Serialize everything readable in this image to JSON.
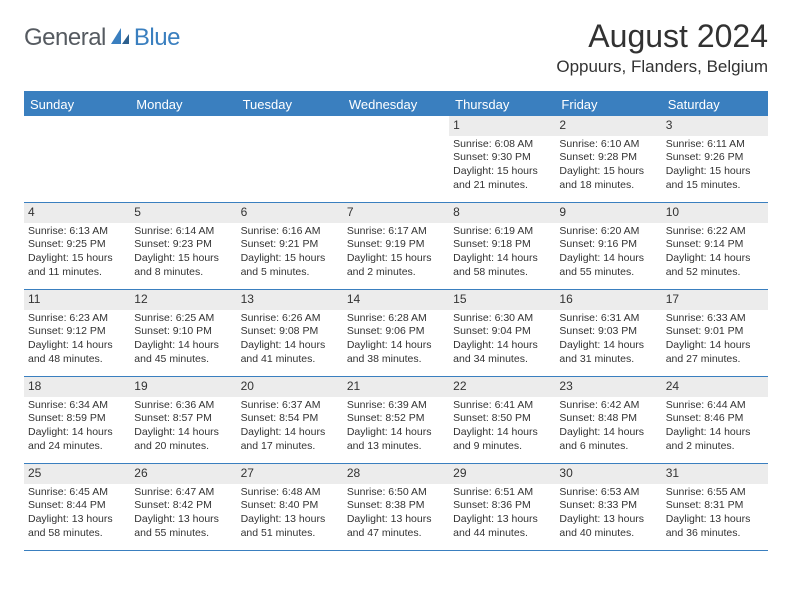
{
  "brand": {
    "general": "General",
    "blue": "Blue"
  },
  "title": "August 2024",
  "location": "Oppuurs, Flanders, Belgium",
  "colors": {
    "accent": "#3a7fbf",
    "dayHeaderBg": "#ececec",
    "text": "#333333",
    "bg": "#ffffff"
  },
  "daysOfWeek": [
    "Sunday",
    "Monday",
    "Tuesday",
    "Wednesday",
    "Thursday",
    "Friday",
    "Saturday"
  ],
  "weeks": [
    [
      null,
      null,
      null,
      null,
      {
        "n": "1",
        "sr": "Sunrise: 6:08 AM",
        "ss": "Sunset: 9:30 PM",
        "dl": "Daylight: 15 hours and 21 minutes."
      },
      {
        "n": "2",
        "sr": "Sunrise: 6:10 AM",
        "ss": "Sunset: 9:28 PM",
        "dl": "Daylight: 15 hours and 18 minutes."
      },
      {
        "n": "3",
        "sr": "Sunrise: 6:11 AM",
        "ss": "Sunset: 9:26 PM",
        "dl": "Daylight: 15 hours and 15 minutes."
      }
    ],
    [
      {
        "n": "4",
        "sr": "Sunrise: 6:13 AM",
        "ss": "Sunset: 9:25 PM",
        "dl": "Daylight: 15 hours and 11 minutes."
      },
      {
        "n": "5",
        "sr": "Sunrise: 6:14 AM",
        "ss": "Sunset: 9:23 PM",
        "dl": "Daylight: 15 hours and 8 minutes."
      },
      {
        "n": "6",
        "sr": "Sunrise: 6:16 AM",
        "ss": "Sunset: 9:21 PM",
        "dl": "Daylight: 15 hours and 5 minutes."
      },
      {
        "n": "7",
        "sr": "Sunrise: 6:17 AM",
        "ss": "Sunset: 9:19 PM",
        "dl": "Daylight: 15 hours and 2 minutes."
      },
      {
        "n": "8",
        "sr": "Sunrise: 6:19 AM",
        "ss": "Sunset: 9:18 PM",
        "dl": "Daylight: 14 hours and 58 minutes."
      },
      {
        "n": "9",
        "sr": "Sunrise: 6:20 AM",
        "ss": "Sunset: 9:16 PM",
        "dl": "Daylight: 14 hours and 55 minutes."
      },
      {
        "n": "10",
        "sr": "Sunrise: 6:22 AM",
        "ss": "Sunset: 9:14 PM",
        "dl": "Daylight: 14 hours and 52 minutes."
      }
    ],
    [
      {
        "n": "11",
        "sr": "Sunrise: 6:23 AM",
        "ss": "Sunset: 9:12 PM",
        "dl": "Daylight: 14 hours and 48 minutes."
      },
      {
        "n": "12",
        "sr": "Sunrise: 6:25 AM",
        "ss": "Sunset: 9:10 PM",
        "dl": "Daylight: 14 hours and 45 minutes."
      },
      {
        "n": "13",
        "sr": "Sunrise: 6:26 AM",
        "ss": "Sunset: 9:08 PM",
        "dl": "Daylight: 14 hours and 41 minutes."
      },
      {
        "n": "14",
        "sr": "Sunrise: 6:28 AM",
        "ss": "Sunset: 9:06 PM",
        "dl": "Daylight: 14 hours and 38 minutes."
      },
      {
        "n": "15",
        "sr": "Sunrise: 6:30 AM",
        "ss": "Sunset: 9:04 PM",
        "dl": "Daylight: 14 hours and 34 minutes."
      },
      {
        "n": "16",
        "sr": "Sunrise: 6:31 AM",
        "ss": "Sunset: 9:03 PM",
        "dl": "Daylight: 14 hours and 31 minutes."
      },
      {
        "n": "17",
        "sr": "Sunrise: 6:33 AM",
        "ss": "Sunset: 9:01 PM",
        "dl": "Daylight: 14 hours and 27 minutes."
      }
    ],
    [
      {
        "n": "18",
        "sr": "Sunrise: 6:34 AM",
        "ss": "Sunset: 8:59 PM",
        "dl": "Daylight: 14 hours and 24 minutes."
      },
      {
        "n": "19",
        "sr": "Sunrise: 6:36 AM",
        "ss": "Sunset: 8:57 PM",
        "dl": "Daylight: 14 hours and 20 minutes."
      },
      {
        "n": "20",
        "sr": "Sunrise: 6:37 AM",
        "ss": "Sunset: 8:54 PM",
        "dl": "Daylight: 14 hours and 17 minutes."
      },
      {
        "n": "21",
        "sr": "Sunrise: 6:39 AM",
        "ss": "Sunset: 8:52 PM",
        "dl": "Daylight: 14 hours and 13 minutes."
      },
      {
        "n": "22",
        "sr": "Sunrise: 6:41 AM",
        "ss": "Sunset: 8:50 PM",
        "dl": "Daylight: 14 hours and 9 minutes."
      },
      {
        "n": "23",
        "sr": "Sunrise: 6:42 AM",
        "ss": "Sunset: 8:48 PM",
        "dl": "Daylight: 14 hours and 6 minutes."
      },
      {
        "n": "24",
        "sr": "Sunrise: 6:44 AM",
        "ss": "Sunset: 8:46 PM",
        "dl": "Daylight: 14 hours and 2 minutes."
      }
    ],
    [
      {
        "n": "25",
        "sr": "Sunrise: 6:45 AM",
        "ss": "Sunset: 8:44 PM",
        "dl": "Daylight: 13 hours and 58 minutes."
      },
      {
        "n": "26",
        "sr": "Sunrise: 6:47 AM",
        "ss": "Sunset: 8:42 PM",
        "dl": "Daylight: 13 hours and 55 minutes."
      },
      {
        "n": "27",
        "sr": "Sunrise: 6:48 AM",
        "ss": "Sunset: 8:40 PM",
        "dl": "Daylight: 13 hours and 51 minutes."
      },
      {
        "n": "28",
        "sr": "Sunrise: 6:50 AM",
        "ss": "Sunset: 8:38 PM",
        "dl": "Daylight: 13 hours and 47 minutes."
      },
      {
        "n": "29",
        "sr": "Sunrise: 6:51 AM",
        "ss": "Sunset: 8:36 PM",
        "dl": "Daylight: 13 hours and 44 minutes."
      },
      {
        "n": "30",
        "sr": "Sunrise: 6:53 AM",
        "ss": "Sunset: 8:33 PM",
        "dl": "Daylight: 13 hours and 40 minutes."
      },
      {
        "n": "31",
        "sr": "Sunrise: 6:55 AM",
        "ss": "Sunset: 8:31 PM",
        "dl": "Daylight: 13 hours and 36 minutes."
      }
    ]
  ]
}
